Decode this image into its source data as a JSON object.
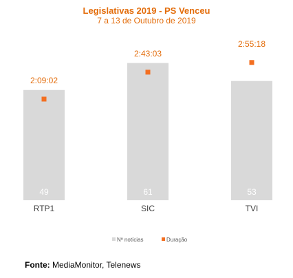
{
  "chart_data": {
    "type": "bar",
    "title": "Legislativas 2019 - PS Venceu",
    "subtitle": "7 a 13 de Outubro de 2019",
    "categories": [
      "RTP1",
      "SIC",
      "TVI"
    ],
    "series": [
      {
        "name": "Nº notícias",
        "type": "bar",
        "values": [
          49,
          61,
          53
        ],
        "color": "#D9D9D9"
      },
      {
        "name": "Duração",
        "type": "marker",
        "values": [
          "2:09:02",
          "2:43:03",
          "2:55:18"
        ],
        "seconds": [
          7742,
          9783,
          10518
        ],
        "color": "#F36F21"
      }
    ],
    "legend_position": "bottom",
    "grid": false
  },
  "source": {
    "label": "Fonte:",
    "text": "MediaMonitor, Telenews"
  }
}
